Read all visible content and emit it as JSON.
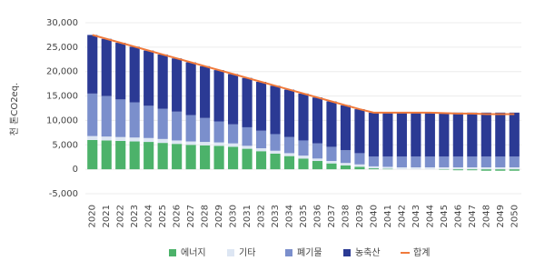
{
  "chart_data": {
    "type": "bar",
    "stacked": true,
    "y_label": "천 톤CO2eq.",
    "categories": [
      "2020",
      "2021",
      "2022",
      "2023",
      "2024",
      "2025",
      "2026",
      "2027",
      "2028",
      "2029",
      "2030",
      "2031",
      "2032",
      "2033",
      "2034",
      "2035",
      "2036",
      "2037",
      "2038",
      "2039",
      "2040",
      "2041",
      "2042",
      "2043",
      "2044",
      "2045",
      "2046",
      "2047",
      "2048",
      "2049",
      "2050"
    ],
    "series": [
      {
        "name": "에너지",
        "type": "bar",
        "color": "#4cb26a",
        "values": [
          6000,
          5900,
          5800,
          5700,
          5600,
          5400,
          5200,
          5000,
          4900,
          4800,
          4600,
          4200,
          3700,
          3200,
          2700,
          2200,
          1700,
          1200,
          800,
          500,
          200,
          100,
          0,
          0,
          0,
          -100,
          -200,
          -200,
          -300,
          -300,
          -300
        ]
      },
      {
        "name": "기타",
        "type": "bar",
        "color": "#dde6f3",
        "values": [
          800,
          800,
          800,
          800,
          800,
          800,
          700,
          700,
          700,
          700,
          700,
          600,
          600,
          600,
          600,
          600,
          500,
          500,
          500,
          500,
          400,
          400,
          400,
          400,
          400,
          400,
          400,
          400,
          400,
          400,
          400
        ]
      },
      {
        "name": "폐기물",
        "type": "bar",
        "color": "#7b8fcc",
        "values": [
          8700,
          8300,
          7700,
          7200,
          6600,
          6200,
          5900,
          5400,
          4900,
          4300,
          3900,
          3800,
          3600,
          3400,
          3300,
          3100,
          3100,
          2900,
          2600,
          2300,
          2000,
          2100,
          2200,
          2200,
          2200,
          2200,
          2200,
          2200,
          2200,
          2200,
          2200
        ]
      },
      {
        "name": "농축산",
        "type": "bar",
        "color": "#2b3a94",
        "values": [
          12000,
          11700,
          11600,
          11400,
          11300,
          11100,
          10900,
          10800,
          10600,
          10500,
          10300,
          10100,
          10000,
          9900,
          9700,
          9600,
          9400,
          9300,
          9200,
          9000,
          9000,
          9000,
          9000,
          9000,
          9000,
          9000,
          9000,
          9000,
          9000,
          9000,
          9000
        ]
      },
      {
        "name": "합계",
        "type": "line",
        "color": "#f07a3c",
        "values": [
          27500,
          26700,
          25900,
          25100,
          24300,
          23500,
          22700,
          21900,
          21100,
          20300,
          19500,
          18700,
          17900,
          17100,
          16300,
          15500,
          14700,
          13900,
          13100,
          12300,
          11600,
          11600,
          11600,
          11600,
          11600,
          11500,
          11400,
          11400,
          11300,
          11300,
          11300
        ]
      }
    ],
    "ylim": [
      -5000,
      30000
    ],
    "yticks": [
      {
        "value": -5000,
        "label": "-5,000"
      },
      0,
      {
        "value": 5000,
        "label": "5,000"
      },
      {
        "value": 10000,
        "label": "10,000"
      },
      {
        "value": 15000,
        "label": "15,000"
      },
      {
        "value": 20000,
        "label": "20,000"
      },
      {
        "value": 25000,
        "label": "25,000"
      },
      {
        "value": 30000,
        "label": "30,000"
      }
    ],
    "grid": true,
    "legend": "bottom"
  }
}
